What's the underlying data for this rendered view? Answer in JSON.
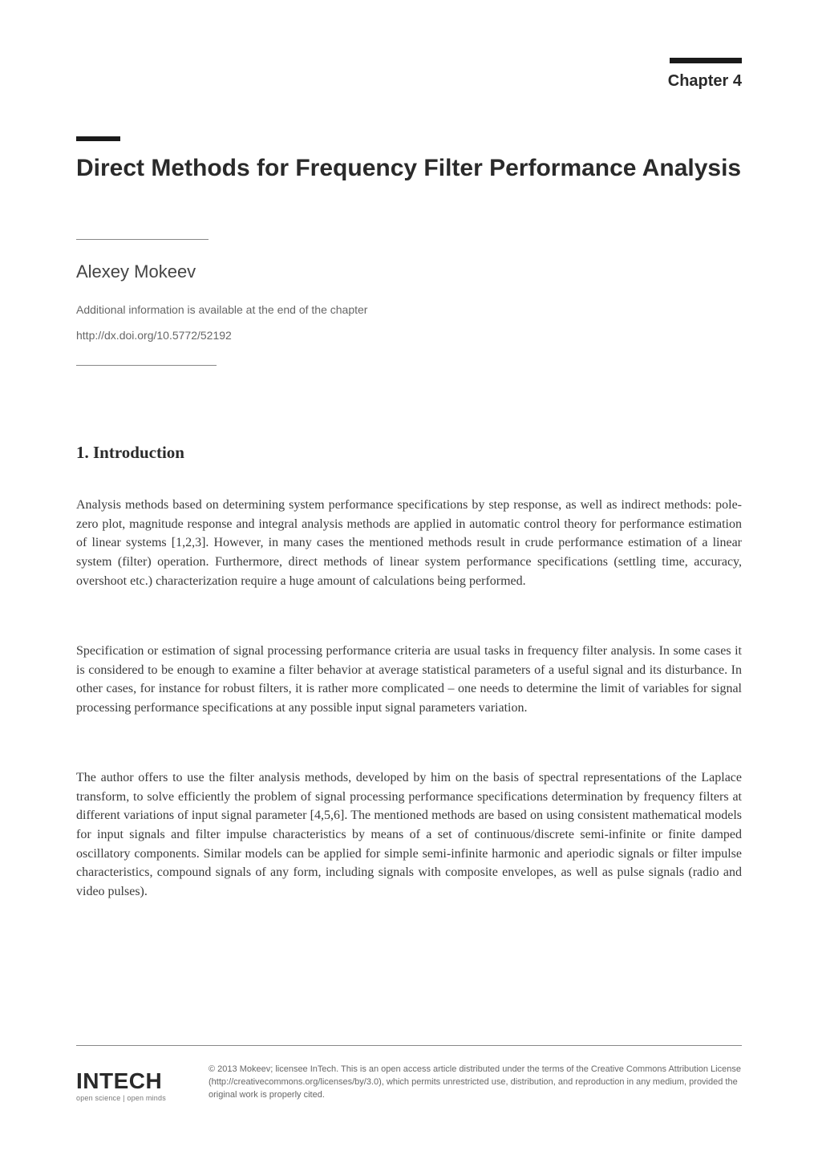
{
  "chapter_label": "Chapter 4",
  "title": "Direct Methods for Frequency Filter Performance Analysis",
  "author": "Alexey Mokeev",
  "meta": {
    "info_line": "Additional information is available at the end of the chapter",
    "doi": "http://dx.doi.org/10.5772/52192"
  },
  "section": {
    "number": "1.",
    "heading": "Introduction"
  },
  "paragraphs": {
    "p1": "Analysis methods based on determining system performance specifications by step response, as well as indirect methods: pole-zero plot, magnitude response and integral analysis methods are applied in automatic control theory for performance estimation of linear systems [1,2,3]. However, in many cases the mentioned methods result in crude performance estimation of a linear system (filter) operation. Furthermore, direct methods of linear system performance specifications (settling time, accuracy, overshoot etc.) characterization require a huge amount of calculations being performed.",
    "p2": "Specification or estimation of signal processing performance criteria are usual tasks in frequency filter analysis. In some cases it is considered to be enough to examine a filter behavior at average statistical parameters of a useful signal and its disturbance. In other cases, for instance for robust filters, it is rather more complicated – one needs to determine the limit of variables for signal processing performance specifications at any possible input signal parameters variation.",
    "p3": "The author offers to use the filter analysis methods, developed by him on the basis of spectral representations of the Laplace transform, to solve efficiently the problem of signal processing performance specifications determination by frequency filters at different variations of input signal parameter [4,5,6]. The mentioned methods are based on using consistent mathematical models for input signals and filter impulse characteristics by means of a set of continuous/discrete semi-infinite or finite damped oscillatory components. Similar models can be applied for simple semi-infinite harmonic and aperiodic signals or filter impulse characteristics, compound signals of any form, including signals with composite envelopes, as well as pulse signals (radio and video pulses)."
  },
  "footer": {
    "logo_text": "INTECH",
    "logo_tagline": "open science | open minds",
    "copyright": "© 2013 Mokeev; licensee InTech. This is an open access article distributed under the terms of the Creative Commons Attribution License (http://creativecommons.org/licenses/by/3.0), which permits unrestricted use, distribution, and reproduction in any medium, provided the original work is properly cited."
  },
  "style": {
    "page_bg": "#ffffff",
    "text_color": "#3a3a3a",
    "heading_color": "#2a2a2a",
    "meta_color": "#666",
    "rule_color": "#888",
    "sans_font": "Myriad Pro / Segoe UI",
    "serif_font": "Palatino",
    "title_fontsize": 30,
    "body_fontsize": 16,
    "author_fontsize": 22,
    "chapter_fontsize": 20,
    "copyright_fontsize": 11
  }
}
